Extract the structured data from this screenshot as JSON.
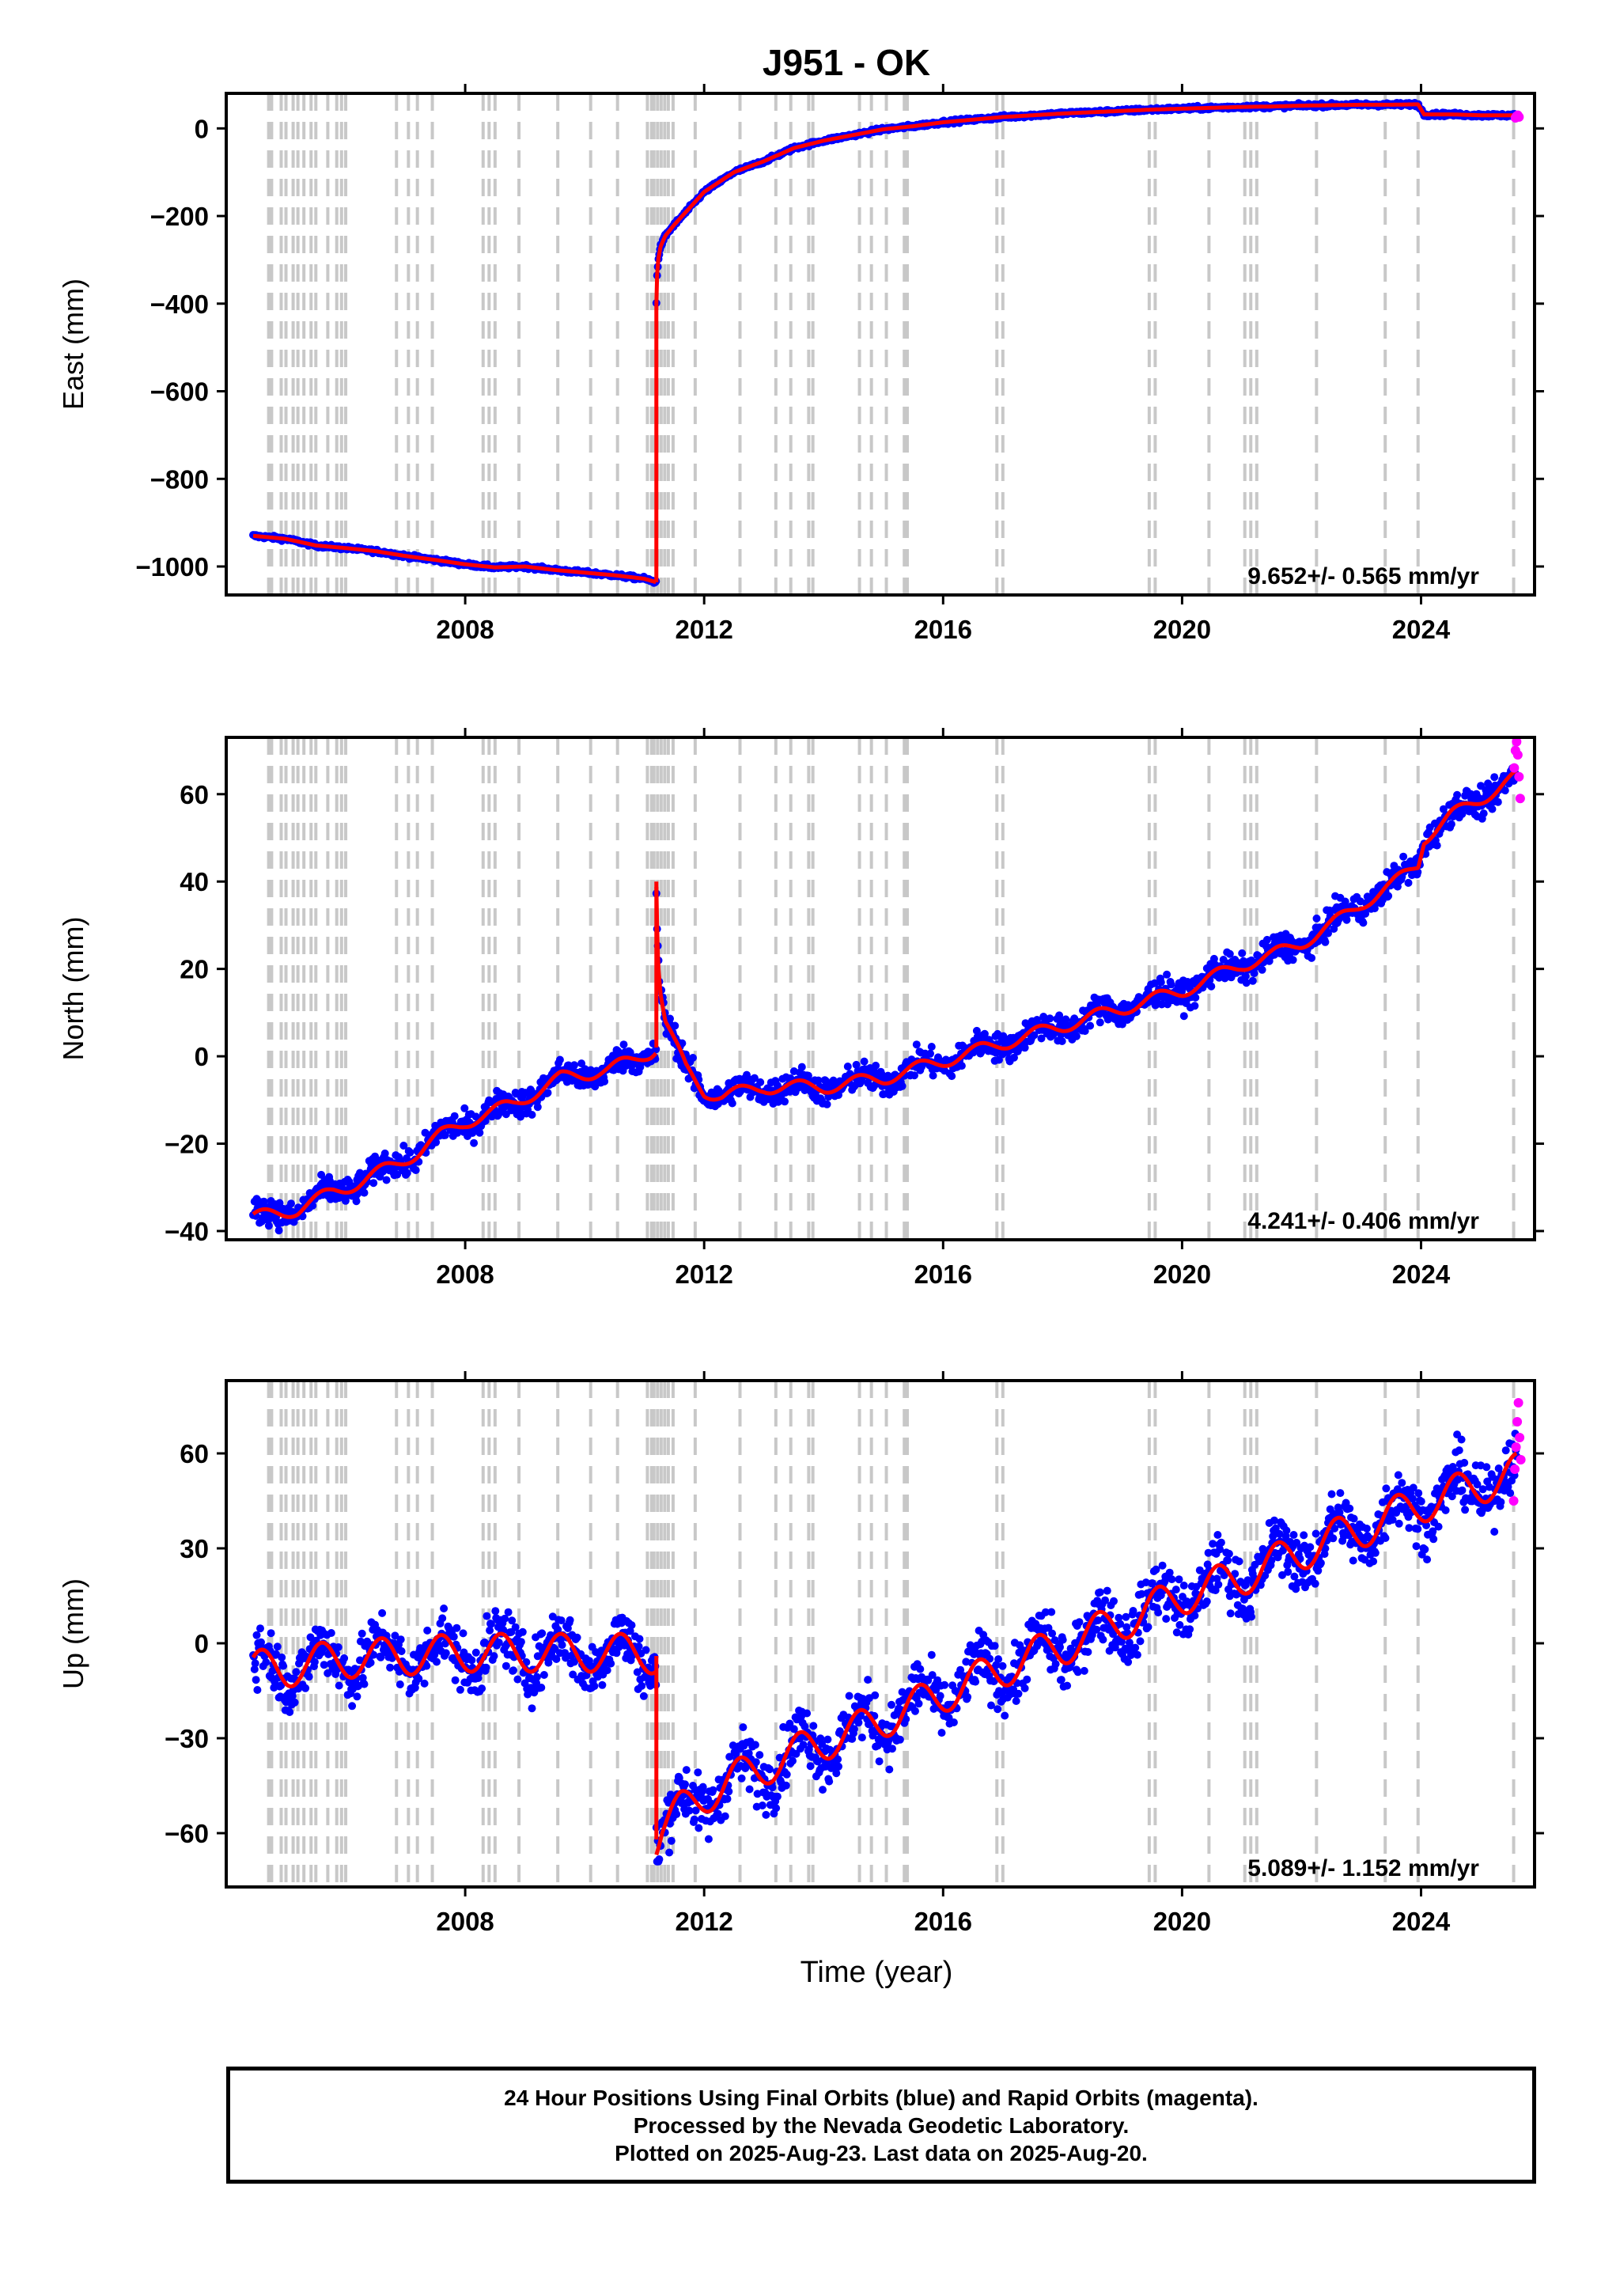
{
  "chart_data": {
    "type": "scatter",
    "title": "J951 - OK",
    "xlabel": "Time (year)",
    "x_ticks": [
      "2008",
      "2012",
      "2016",
      "2020",
      "2024"
    ],
    "xlim": [
      2004.0,
      2025.9
    ],
    "equipment_change_dates": [
      2004.71,
      2004.76,
      2004.92,
      2005.0,
      2005.12,
      2005.2,
      2005.3,
      2005.42,
      2005.5,
      2005.7,
      2005.85,
      2005.93,
      2006.0,
      2006.85,
      2007.05,
      2007.2,
      2007.45,
      2008.3,
      2008.4,
      2008.5,
      2008.9,
      2009.55,
      2010.1,
      2010.55,
      2011.05,
      2011.12,
      2011.16,
      2011.22,
      2011.28,
      2011.34,
      2011.4,
      2011.48,
      2011.85,
      2012.6,
      2013.2,
      2013.45,
      2013.75,
      2013.82,
      2014.6,
      2014.8,
      2015.05,
      2015.35,
      2015.4,
      2016.9,
      2017.0,
      2019.45,
      2019.55,
      2020.45,
      2021.05,
      2021.15,
      2021.25,
      2022.25,
      2023.4,
      2023.95,
      2025.55
    ],
    "panels": [
      {
        "ylabel": "East (mm)",
        "ylim": [
          -1065,
          80
        ],
        "y_ticks": [
          0,
          -200,
          -400,
          -600,
          -800,
          -1000
        ],
        "rate": "9.652+/- 0.565 mm/yr",
        "model": {
          "pre": {
            "x": [
              2004.45,
              2005.0,
              2005.5,
              2006.0,
              2006.5,
              2007.0,
              2007.5,
              2008.0,
              2008.5,
              2009.0,
              2009.5,
              2010.0,
              2010.5,
              2011.0,
              2011.2
            ],
            "y": [
              -930,
              -937,
              -952,
              -958,
              -965,
              -976,
              -985,
              -995,
              -1002,
              -1000,
              -1008,
              -1014,
              -1020,
              -1028,
              -1036
            ]
          },
          "post": {
            "x": [
              2011.2,
              2011.21,
              2011.23,
              2011.27,
              2011.35,
              2011.5,
              2011.7,
              2012.0,
              2012.5,
              2013.0,
              2013.5,
              2014.0,
              2014.5,
              2015.0,
              2015.5,
              2016.0,
              2016.5,
              2017.0,
              2017.5,
              2018.0,
              2018.5,
              2019.0,
              2019.5,
              2020.0,
              2020.5,
              2021.0,
              2021.5,
              2022.0,
              2022.5,
              2023.0,
              2023.5,
              2023.95,
              2024.05,
              2024.5,
              2025.0,
              2025.6
            ],
            "y": [
              -400,
              -340,
              -300,
              -270,
              -245,
              -220,
              -190,
              -145,
              -100,
              -75,
              -45,
              -28,
              -15,
              -2,
              5,
              14,
              20,
              26,
              30,
              34,
              37,
              40,
              43,
              45,
              47,
              49,
              50,
              52,
              53,
              54,
              54,
              55,
              32,
              32,
              30,
              30
            ]
          }
        },
        "rapid": {
          "x": [
            2025.58,
            2025.6,
            2025.62,
            2025.64
          ],
          "y": [
            24,
            28,
            30,
            26
          ]
        }
      },
      {
        "ylabel": "North (mm)",
        "ylim": [
          -42,
          73
        ],
        "y_ticks": [
          60,
          40,
          20,
          0,
          -20,
          -40
        ],
        "rate": "4.241+/- 0.406 mm/yr",
        "model": {
          "pre": {
            "x": [
              2004.45,
              2004.8,
              2005.2,
              2005.5,
              2005.8,
              2006.2,
              2006.5,
              2006.8,
              2007.2,
              2007.6,
              2008.0,
              2008.4,
              2008.8,
              2009.2,
              2009.6,
              2010.0,
              2010.4,
              2010.8,
              2011.1,
              2011.2
            ],
            "y": [
              -37,
              -36,
              -35,
              -33,
              -31,
              -29,
              -27,
              -25,
              -22,
              -18,
              -15,
              -13,
              -11,
              -8,
              -5,
              -4,
              -3,
              -1,
              1,
              2
            ]
          },
          "post": {
            "x": [
              2011.2,
              2011.21,
              2011.23,
              2011.27,
              2011.35,
              2011.5,
              2011.7,
              2012.0,
              2012.3,
              2012.7,
              2013.0,
              2013.5,
              2014.0,
              2014.5,
              2015.0,
              2015.5,
              2016.0,
              2016.5,
              2017.0,
              2017.5,
              2018.0,
              2018.5,
              2019.0,
              2019.5,
              2020.0,
              2020.5,
              2021.0,
              2021.5,
              2022.0,
              2022.5,
              2023.0,
              2023.5,
              2023.95,
              2024.05,
              2024.5,
              2025.0,
              2025.6
            ],
            "y": [
              40,
              32,
              22,
              15,
              8,
              3,
              -3,
              -8,
              -9,
              -8,
              -7,
              -7,
              -7,
              -6,
              -5,
              -3,
              -1,
              1,
              3,
              5,
              7,
              9,
              11,
              13,
              15,
              18,
              21,
              23,
              26,
              30,
              35,
              39,
              44,
              50,
              55,
              59,
              64
            ]
          }
        },
        "rapid": {
          "x": [
            2025.56,
            2025.58,
            2025.6,
            2025.62,
            2025.64,
            2025.66
          ],
          "y": [
            66,
            70,
            72,
            69,
            64,
            59
          ]
        }
      },
      {
        "ylabel": "Up (mm)",
        "ylim": [
          -77,
          83
        ],
        "y_ticks": [
          60,
          30,
          0,
          -30,
          -60
        ],
        "rate": "5.089+/- 1.152 mm/yr",
        "model": {
          "pre": {
            "x": [
              2004.45,
              2005.0,
              2005.5,
              2006.0,
              2007.0,
              2008.0,
              2009.0,
              2010.0,
              2011.0,
              2011.2
            ],
            "y": [
              -8,
              -8,
              -6,
              -5,
              -4,
              -3,
              -3,
              -3,
              -3,
              -4
            ]
          },
          "post": {
            "x": [
              2011.2,
              2011.3,
              2011.6,
              2012.0,
              2012.5,
              2013.0,
              2013.5,
              2014.0,
              2014.5,
              2015.0,
              2015.5,
              2016.0,
              2016.5,
              2017.0,
              2017.5,
              2018.0,
              2018.5,
              2019.0,
              2019.5,
              2020.0,
              2020.5,
              2021.0,
              2021.5,
              2022.0,
              2022.5,
              2023.0,
              2023.5,
              2024.0,
              2024.5,
              2025.0,
              2025.6
            ],
            "y": [
              -62,
              -58,
              -53,
              -48,
              -43,
              -39,
              -35,
              -31,
              -28,
              -24,
              -20,
              -16,
              -12,
              -8,
              -4,
              -1,
              3,
              7,
              11,
              15,
              18,
              21,
              25,
              29,
              33,
              36,
              40,
              44,
              47,
              50,
              54
            ]
          }
        },
        "rapid": {
          "x": [
            2025.55,
            2025.57,
            2025.59,
            2025.61,
            2025.63,
            2025.65,
            2025.67
          ],
          "y": [
            45,
            55,
            62,
            70,
            76,
            65,
            58
          ]
        }
      }
    ],
    "colors": {
      "final_orbits": "#0000ff",
      "rapid_orbits": "#ff00ff",
      "model": "#ff0000",
      "equipment_lines": "#c8c8c8",
      "frame": "#000000"
    }
  },
  "footer": {
    "line1": "24 Hour Positions Using Final Orbits (blue) and Rapid Orbits (magenta).",
    "line2": "Processed by the Nevada Geodetic Laboratory.",
    "line3": "Plotted on 2025-Aug-23. Last data on 2025-Aug-20."
  }
}
